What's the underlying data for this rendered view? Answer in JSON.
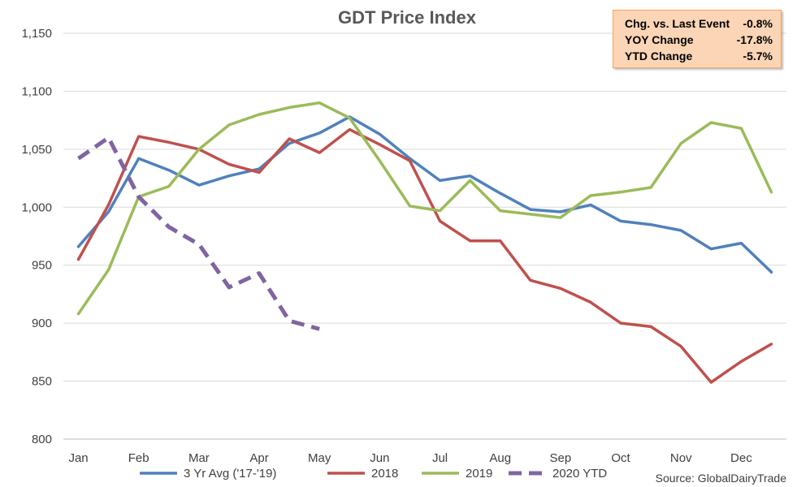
{
  "chart_data": {
    "type": "line",
    "title": "GDT Price Index",
    "xlabel": "",
    "ylabel": "",
    "ylim": [
      800,
      1150
    ],
    "y_ticks": [
      "800",
      "850",
      "900",
      "950",
      "1,000",
      "1,050",
      "1,100",
      "1,150"
    ],
    "y_tick_values": [
      800,
      850,
      900,
      950,
      1000,
      1050,
      1100,
      1150
    ],
    "x_ticks": [
      "Jan",
      "Feb",
      "Mar",
      "Apr",
      "May",
      "Jun",
      "Jul",
      "Aug",
      "Sep",
      "Oct",
      "Nov",
      "Dec"
    ],
    "events_per_year": 24,
    "grid": true,
    "legend_position": "bottom",
    "series": [
      {
        "name": "3 Yr Avg ('17-'19)",
        "color": "#4f81bd",
        "dash": false,
        "values": [
          966,
          996,
          1042,
          1032,
          1019,
          1027,
          1033,
          1055,
          1064,
          1078,
          1063,
          1042,
          1023,
          1027,
          1012,
          998,
          996,
          1002,
          988,
          985,
          980,
          964,
          969,
          944
        ]
      },
      {
        "name": "2018",
        "color": "#c0504d",
        "dash": false,
        "values": [
          955,
          1002,
          1061,
          1056,
          1050,
          1037,
          1030,
          1059,
          1047,
          1067,
          1054,
          1040,
          988,
          971,
          971,
          937,
          930,
          918,
          900,
          897,
          880,
          849,
          867,
          882
        ]
      },
      {
        "name": "2019",
        "color": "#9bbb59",
        "dash": false,
        "values": [
          908,
          946,
          1009,
          1018,
          1050,
          1071,
          1080,
          1086,
          1090,
          1077,
          1040,
          1001,
          997,
          1023,
          997,
          994,
          991,
          1010,
          1013,
          1017,
          1055,
          1073,
          1068,
          1013
        ]
      },
      {
        "name": "2020 YTD",
        "color": "#8064a2",
        "dash": true,
        "values": [
          1042,
          1060,
          1009,
          983,
          968,
          931,
          943,
          902,
          895
        ]
      }
    ],
    "source": "Source: GlobalDairyTrade"
  },
  "stats_box": {
    "rows": [
      {
        "label": "Chg. vs. Last Event",
        "value": "-0.8%"
      },
      {
        "label": "YOY Change",
        "value": "-17.8%"
      },
      {
        "label": "YTD Change",
        "value": "-5.7%"
      }
    ],
    "background": "#fbd5b5",
    "border": "#f4a45f"
  }
}
